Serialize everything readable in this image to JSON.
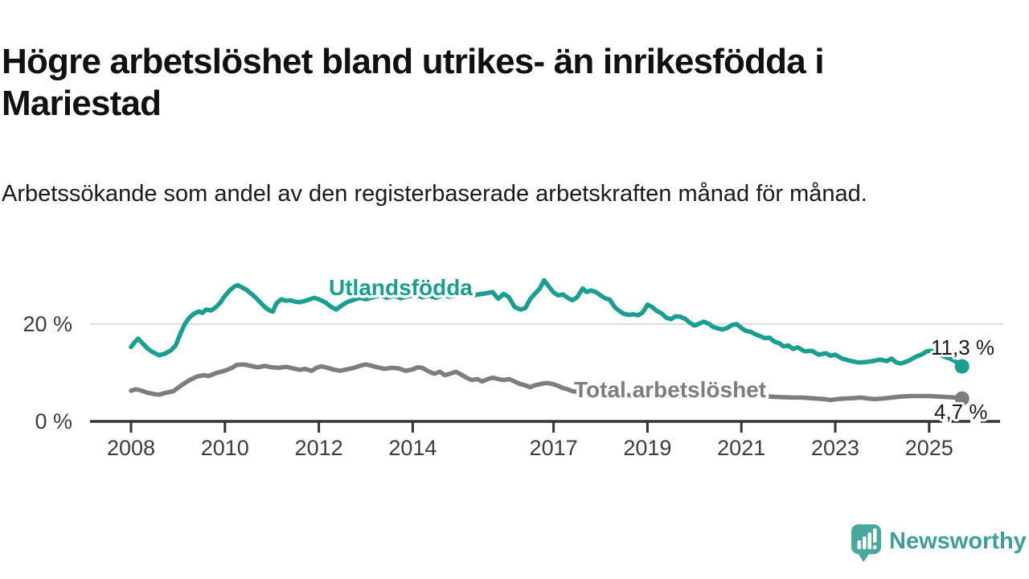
{
  "title": "Högre arbetslöshet bland utrikes- än inrikesfödda i Mariestad",
  "subtitle": "Arbetssökande som andel av den registerbaserade arbetskraften månad för månad.",
  "branding": {
    "logo_text": "Newsworthy",
    "logo_color": "#3f9e96",
    "logo_icon": "speech-bubble-bar-chart"
  },
  "colors": {
    "foreign_born_line": "#1a9e8f",
    "total_line": "#7d7d7d",
    "axis": "#333333",
    "gridline": "#dedede",
    "text": "#111111"
  },
  "chart_data": {
    "type": "line",
    "unit": "%",
    "grid": "horizontal gridline at 20% only",
    "legend": "inline labels on lines",
    "x_axis": {
      "ticks": [
        2008,
        2010,
        2012,
        2014,
        2017,
        2019,
        2021,
        2023,
        2025
      ],
      "range": [
        2007.1,
        2026.4
      ],
      "note": "monthly data, axis dashed beyond last observation"
    },
    "y_axis": {
      "ticks": [
        {
          "value": 0,
          "label": "0 %"
        },
        {
          "value": 20,
          "label": "20 %"
        }
      ],
      "range": [
        0,
        31
      ]
    },
    "series": [
      {
        "name": "Utlandsfödda",
        "color": "#1a9e8f",
        "end_label": "11,3 %",
        "end_value": 11.3,
        "points": [
          [
            2008.0,
            15.3
          ],
          [
            2008.08,
            16.3
          ],
          [
            2008.15,
            17.0
          ],
          [
            2008.25,
            16.0
          ],
          [
            2008.35,
            15.0
          ],
          [
            2008.45,
            14.3
          ],
          [
            2008.6,
            13.6
          ],
          [
            2008.72,
            13.9
          ],
          [
            2008.85,
            14.6
          ],
          [
            2008.95,
            15.6
          ],
          [
            2009.05,
            18.0
          ],
          [
            2009.15,
            20.1
          ],
          [
            2009.25,
            21.4
          ],
          [
            2009.35,
            22.2
          ],
          [
            2009.45,
            22.6
          ],
          [
            2009.52,
            22.3
          ],
          [
            2009.6,
            23.0
          ],
          [
            2009.7,
            22.8
          ],
          [
            2009.8,
            23.4
          ],
          [
            2009.9,
            24.4
          ],
          [
            2010.0,
            25.8
          ],
          [
            2010.1,
            26.9
          ],
          [
            2010.2,
            27.7
          ],
          [
            2010.27,
            28.0
          ],
          [
            2010.35,
            27.6
          ],
          [
            2010.45,
            27.1
          ],
          [
            2010.55,
            26.3
          ],
          [
            2010.65,
            25.5
          ],
          [
            2010.75,
            24.5
          ],
          [
            2010.85,
            23.5
          ],
          [
            2010.95,
            22.8
          ],
          [
            2011.02,
            22.6
          ],
          [
            2011.1,
            24.3
          ],
          [
            2011.2,
            25.1
          ],
          [
            2011.3,
            24.8
          ],
          [
            2011.4,
            24.9
          ],
          [
            2011.5,
            24.6
          ],
          [
            2011.6,
            24.5
          ],
          [
            2011.75,
            24.9
          ],
          [
            2011.9,
            25.4
          ],
          [
            2012.0,
            25.1
          ],
          [
            2012.15,
            24.4
          ],
          [
            2012.25,
            23.6
          ],
          [
            2012.37,
            23.0
          ],
          [
            2012.5,
            23.9
          ],
          [
            2012.62,
            24.6
          ],
          [
            2012.75,
            25.0
          ],
          [
            2012.87,
            25.4
          ],
          [
            2013.0,
            25.1
          ],
          [
            2013.15,
            25.5
          ],
          [
            2013.3,
            25.9
          ],
          [
            2013.45,
            25.4
          ],
          [
            2013.6,
            25.8
          ],
          [
            2013.75,
            25.3
          ],
          [
            2013.9,
            25.7
          ],
          [
            2014.05,
            26.0
          ],
          [
            2014.2,
            25.5
          ],
          [
            2014.35,
            25.8
          ],
          [
            2014.5,
            25.4
          ],
          [
            2014.65,
            25.9
          ],
          [
            2014.8,
            25.6
          ],
          [
            2014.95,
            26.0
          ],
          [
            2015.1,
            26.3
          ],
          [
            2015.25,
            25.8
          ],
          [
            2015.4,
            26.1
          ],
          [
            2015.55,
            26.3
          ],
          [
            2015.7,
            26.6
          ],
          [
            2015.82,
            25.2
          ],
          [
            2015.94,
            26.2
          ],
          [
            2016.05,
            25.5
          ],
          [
            2016.17,
            23.5
          ],
          [
            2016.3,
            23.0
          ],
          [
            2016.4,
            23.3
          ],
          [
            2016.5,
            25.1
          ],
          [
            2016.6,
            26.2
          ],
          [
            2016.7,
            27.2
          ],
          [
            2016.8,
            29.0
          ],
          [
            2016.9,
            27.7
          ],
          [
            2017.0,
            26.5
          ],
          [
            2017.1,
            25.9
          ],
          [
            2017.2,
            26.1
          ],
          [
            2017.3,
            25.4
          ],
          [
            2017.4,
            24.9
          ],
          [
            2017.5,
            25.5
          ],
          [
            2017.62,
            27.3
          ],
          [
            2017.7,
            26.6
          ],
          [
            2017.8,
            26.9
          ],
          [
            2017.9,
            26.6
          ],
          [
            2018.0,
            25.9
          ],
          [
            2018.1,
            25.3
          ],
          [
            2018.2,
            25.0
          ],
          [
            2018.3,
            23.5
          ],
          [
            2018.4,
            22.7
          ],
          [
            2018.5,
            22.1
          ],
          [
            2018.6,
            21.9
          ],
          [
            2018.7,
            22.0
          ],
          [
            2018.8,
            21.8
          ],
          [
            2018.9,
            22.4
          ],
          [
            2019.0,
            24.0
          ],
          [
            2019.1,
            23.5
          ],
          [
            2019.2,
            22.7
          ],
          [
            2019.3,
            22.2
          ],
          [
            2019.4,
            21.3
          ],
          [
            2019.5,
            21.0
          ],
          [
            2019.6,
            21.6
          ],
          [
            2019.7,
            21.5
          ],
          [
            2019.8,
            21.1
          ],
          [
            2019.9,
            20.3
          ],
          [
            2020.0,
            19.7
          ],
          [
            2020.1,
            20.1
          ],
          [
            2020.2,
            20.5
          ],
          [
            2020.3,
            20.1
          ],
          [
            2020.4,
            19.4
          ],
          [
            2020.5,
            19.1
          ],
          [
            2020.6,
            18.9
          ],
          [
            2020.7,
            19.2
          ],
          [
            2020.8,
            19.8
          ],
          [
            2020.9,
            20.0
          ],
          [
            2021.0,
            19.2
          ],
          [
            2021.1,
            18.6
          ],
          [
            2021.2,
            18.4
          ],
          [
            2021.3,
            17.9
          ],
          [
            2021.4,
            17.5
          ],
          [
            2021.5,
            17.1
          ],
          [
            2021.6,
            17.2
          ],
          [
            2021.7,
            16.4
          ],
          [
            2021.8,
            16.1
          ],
          [
            2021.9,
            15.4
          ],
          [
            2022.0,
            15.6
          ],
          [
            2022.1,
            14.9
          ],
          [
            2022.2,
            15.2
          ],
          [
            2022.35,
            14.4
          ],
          [
            2022.5,
            14.5
          ],
          [
            2022.65,
            13.7
          ],
          [
            2022.8,
            14.0
          ],
          [
            2022.9,
            13.5
          ],
          [
            2023.0,
            13.7
          ],
          [
            2023.15,
            12.9
          ],
          [
            2023.3,
            12.5
          ],
          [
            2023.5,
            12.1
          ],
          [
            2023.65,
            12.2
          ],
          [
            2023.8,
            12.4
          ],
          [
            2023.95,
            12.7
          ],
          [
            2024.1,
            12.4
          ],
          [
            2024.2,
            12.9
          ],
          [
            2024.3,
            12.1
          ],
          [
            2024.4,
            11.9
          ],
          [
            2024.55,
            12.4
          ],
          [
            2024.7,
            13.2
          ],
          [
            2024.85,
            13.8
          ],
          [
            2024.95,
            14.4
          ],
          [
            2025.05,
            14.5
          ],
          [
            2025.15,
            14.3
          ],
          [
            2025.25,
            13.6
          ],
          [
            2025.35,
            13.2
          ],
          [
            2025.45,
            12.9
          ],
          [
            2025.55,
            12.4
          ],
          [
            2025.62,
            11.9
          ],
          [
            2025.7,
            11.3
          ]
        ]
      },
      {
        "name": "Total arbetslöshet",
        "color": "#7d7d7d",
        "end_label": "4,7 %",
        "end_value": 4.7,
        "points": [
          [
            2008.0,
            6.3
          ],
          [
            2008.1,
            6.6
          ],
          [
            2008.2,
            6.4
          ],
          [
            2008.35,
            5.9
          ],
          [
            2008.5,
            5.6
          ],
          [
            2008.6,
            5.5
          ],
          [
            2008.75,
            5.9
          ],
          [
            2008.9,
            6.2
          ],
          [
            2009.0,
            6.9
          ],
          [
            2009.1,
            7.6
          ],
          [
            2009.25,
            8.5
          ],
          [
            2009.4,
            9.2
          ],
          [
            2009.55,
            9.5
          ],
          [
            2009.65,
            9.3
          ],
          [
            2009.8,
            9.9
          ],
          [
            2009.95,
            10.3
          ],
          [
            2010.05,
            10.6
          ],
          [
            2010.15,
            11.0
          ],
          [
            2010.25,
            11.6
          ],
          [
            2010.4,
            11.7
          ],
          [
            2010.55,
            11.4
          ],
          [
            2010.7,
            11.1
          ],
          [
            2010.85,
            11.4
          ],
          [
            2011.0,
            11.1
          ],
          [
            2011.15,
            11.0
          ],
          [
            2011.3,
            11.2
          ],
          [
            2011.45,
            10.9
          ],
          [
            2011.6,
            10.6
          ],
          [
            2011.7,
            10.8
          ],
          [
            2011.85,
            10.4
          ],
          [
            2011.95,
            11.0
          ],
          [
            2012.05,
            11.3
          ],
          [
            2012.15,
            11.1
          ],
          [
            2012.3,
            10.7
          ],
          [
            2012.45,
            10.4
          ],
          [
            2012.6,
            10.7
          ],
          [
            2012.75,
            11.0
          ],
          [
            2012.9,
            11.5
          ],
          [
            2013.0,
            11.7
          ],
          [
            2013.1,
            11.5
          ],
          [
            2013.25,
            11.1
          ],
          [
            2013.4,
            10.8
          ],
          [
            2013.55,
            11.0
          ],
          [
            2013.7,
            10.9
          ],
          [
            2013.85,
            10.4
          ],
          [
            2014.0,
            10.7
          ],
          [
            2014.1,
            11.1
          ],
          [
            2014.2,
            11.0
          ],
          [
            2014.3,
            10.5
          ],
          [
            2014.4,
            10.0
          ],
          [
            2014.46,
            9.8
          ],
          [
            2014.58,
            10.2
          ],
          [
            2014.68,
            9.5
          ],
          [
            2014.8,
            9.8
          ],
          [
            2014.92,
            10.2
          ],
          [
            2015.02,
            9.7
          ],
          [
            2015.14,
            9.0
          ],
          [
            2015.26,
            8.5
          ],
          [
            2015.38,
            8.7
          ],
          [
            2015.48,
            8.2
          ],
          [
            2015.6,
            8.7
          ],
          [
            2015.7,
            9.0
          ],
          [
            2015.82,
            8.7
          ],
          [
            2015.94,
            8.5
          ],
          [
            2016.05,
            8.7
          ],
          [
            2016.17,
            8.2
          ],
          [
            2016.28,
            7.7
          ],
          [
            2016.4,
            7.4
          ],
          [
            2016.5,
            7.0
          ],
          [
            2016.6,
            7.4
          ],
          [
            2016.73,
            7.7
          ],
          [
            2016.85,
            7.9
          ],
          [
            2016.97,
            7.7
          ],
          [
            2017.07,
            7.4
          ],
          [
            2017.19,
            6.9
          ],
          [
            2017.3,
            6.6
          ],
          [
            2017.4,
            6.2
          ],
          [
            2017.6,
            6.0
          ],
          [
            2017.8,
            5.9
          ],
          [
            2018.0,
            5.8
          ],
          [
            2018.3,
            5.6
          ],
          [
            2018.6,
            5.4
          ],
          [
            2019.0,
            5.3
          ],
          [
            2019.4,
            5.2
          ],
          [
            2019.8,
            5.1
          ],
          [
            2020.2,
            5.6
          ],
          [
            2020.6,
            5.8
          ],
          [
            2021.0,
            5.5
          ],
          [
            2021.4,
            5.2
          ],
          [
            2021.8,
            5.0
          ],
          [
            2022.1,
            4.9
          ],
          [
            2022.3,
            4.9
          ],
          [
            2022.45,
            4.8
          ],
          [
            2022.6,
            4.7
          ],
          [
            2022.75,
            4.6
          ],
          [
            2022.9,
            4.4
          ],
          [
            2023.05,
            4.6
          ],
          [
            2023.2,
            4.7
          ],
          [
            2023.4,
            4.8
          ],
          [
            2023.55,
            4.9
          ],
          [
            2023.7,
            4.7
          ],
          [
            2023.85,
            4.6
          ],
          [
            2024.0,
            4.7
          ],
          [
            2024.2,
            4.9
          ],
          [
            2024.4,
            5.1
          ],
          [
            2024.6,
            5.2
          ],
          [
            2024.8,
            5.2
          ],
          [
            2025.0,
            5.2
          ],
          [
            2025.2,
            5.1
          ],
          [
            2025.4,
            5.0
          ],
          [
            2025.55,
            4.9
          ],
          [
            2025.7,
            4.7
          ]
        ]
      }
    ]
  }
}
